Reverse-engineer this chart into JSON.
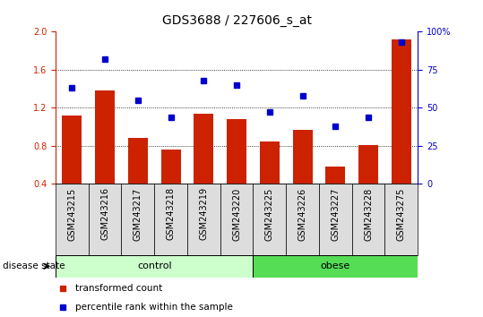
{
  "title": "GDS3688 / 227606_s_at",
  "samples": [
    "GSM243215",
    "GSM243216",
    "GSM243217",
    "GSM243218",
    "GSM243219",
    "GSM243220",
    "GSM243225",
    "GSM243226",
    "GSM243227",
    "GSM243228",
    "GSM243275"
  ],
  "bar_values": [
    1.12,
    1.38,
    0.88,
    0.76,
    1.14,
    1.08,
    0.85,
    0.97,
    0.58,
    0.81,
    1.92
  ],
  "dot_values": [
    63,
    82,
    55,
    44,
    68,
    65,
    47,
    58,
    38,
    44,
    93
  ],
  "bar_color": "#cc2200",
  "dot_color": "#0000cc",
  "ylim_left": [
    0.4,
    2.0
  ],
  "ylim_right": [
    0,
    100
  ],
  "yticks_left": [
    0.4,
    0.8,
    1.2,
    1.6,
    2.0
  ],
  "yticks_right": [
    0,
    25,
    50,
    75,
    100
  ],
  "ytick_labels_right": [
    "0",
    "25",
    "50",
    "75",
    "100%"
  ],
  "grid_values": [
    0.8,
    1.2,
    1.6
  ],
  "control_count": 6,
  "obese_count": 5,
  "control_label": "control",
  "obese_label": "obese",
  "disease_state_label": "disease state",
  "legend_bar_label": "transformed count",
  "legend_dot_label": "percentile rank within the sample",
  "control_color": "#ccffcc",
  "obese_color": "#55dd55",
  "cell_color": "#dddddd",
  "background_color": "#ffffff",
  "title_fontsize": 10,
  "tick_fontsize": 7,
  "label_fontsize": 7,
  "group_fontsize": 8,
  "legend_fontsize": 7.5
}
